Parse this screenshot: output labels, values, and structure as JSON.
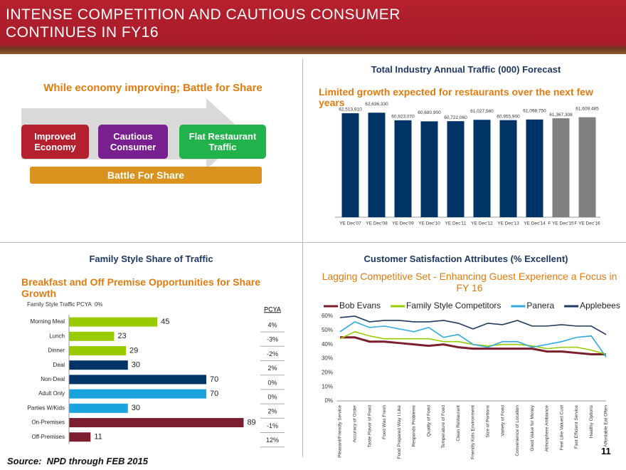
{
  "header": {
    "title": "INTENSE COMPETITION AND CAUTIOUS CONSUMER CONTINUES IN FY16"
  },
  "strategy": {
    "headline": "While economy improving; Battle for Share",
    "boxes": [
      "Improved Economy",
      "Cautious Consumer",
      "Flat Restaurant Traffic"
    ],
    "banner": "Battle For Share"
  },
  "chart_data": [
    {
      "type": "bar",
      "title": "Total Industry Annual Traffic (000) Forecast",
      "subtitle": "Limited growth expected for restaurants over the next few years",
      "categories": [
        "YE Dec'07",
        "YE Dec'08",
        "YE Dec'09",
        "YE Dec'10",
        "YE Dec'11",
        "YE Dec'12",
        "YE Dec'13",
        "YE Dec'14",
        "F YE Dec'15",
        "F YE Dec'16"
      ],
      "values": [
        62513910,
        62636330,
        60923070,
        60680900,
        60722060,
        61027560,
        60955900,
        61098750,
        61367308,
        61609485
      ],
      "value_labels": [
        "62,513,910",
        "62,636,330",
        "60,923,070",
        "60,680,900",
        "60,722,060",
        "61,027,560",
        "60,955,900",
        "61,098,750",
        "61,367,308",
        "61,609,485"
      ],
      "colors": [
        "#003466",
        "#003466",
        "#003466",
        "#003466",
        "#003466",
        "#003466",
        "#003466",
        "#003466",
        "#808080",
        "#808080"
      ],
      "ylim": [
        39000000,
        63000000
      ]
    },
    {
      "type": "hbar",
      "title": "Family Style Share of Traffic",
      "subtitle": "Breakfast and Off Premise Opportunities for Share Growth",
      "note": "Family Style Traffic PCYA  0%",
      "categories": [
        "Morning Meal",
        "Lunch",
        "Dinner",
        "Deal",
        "Non-Deal",
        "Adult Only",
        "Parties W/Kids",
        "On-Premises",
        "Off-Premises"
      ],
      "values": [
        45,
        23,
        29,
        30,
        70,
        70,
        30,
        89,
        11
      ],
      "colors": [
        "#99cc00",
        "#99cc00",
        "#99cc00",
        "#003466",
        "#003466",
        "#1aa3dc",
        "#1aa3dc",
        "#7b1f2e",
        "#7b1f2e"
      ],
      "xlim": [
        0,
        95
      ],
      "pcya": {
        "header": "PCYA",
        "values": [
          4,
          -3,
          -2,
          2,
          0,
          0,
          2,
          -1,
          12
        ],
        "value_labels": [
          "4%",
          "-3%",
          "-2%",
          "2%",
          "0%",
          "0%",
          "2%",
          "-1%",
          "12%"
        ]
      }
    },
    {
      "type": "line",
      "title": "Customer Satisfaction Attributes (% Excellent)",
      "subtitle": "Lagging Competitive Set - Enhancing Guest Experience a Focus in FY 16",
      "categories": [
        "Pleasant/Friendly Service",
        "Accuracy of Order",
        "Taste Flavor of Food",
        "Food Was Fresh",
        "Food Prepared Way I Like",
        "Responds Problems",
        "Quality of Food",
        "Temperature of Food",
        "Clean Restaurant",
        "Friendly Kids Environment",
        "Size of Portions",
        "Variety of Food",
        "Convenience of Location",
        "Good Value for Money",
        "Atmosphere Ambiance",
        "Feel Like Valued Cust",
        "Fast Efficient Service",
        "Healthy Options",
        "Affordable Eat Often"
      ],
      "series": [
        {
          "name": "Bob Evans",
          "color": "#7b1f2e",
          "values": [
            45,
            45,
            42,
            42,
            41,
            40,
            39,
            40,
            38,
            37,
            37,
            37,
            37,
            37,
            35,
            35,
            34,
            33,
            33
          ]
        },
        {
          "name": "Family Style Competitors",
          "color": "#99cc00",
          "values": [
            44,
            49,
            46,
            44,
            44,
            44,
            44,
            42,
            42,
            40,
            39,
            40,
            40,
            39,
            37,
            38,
            38,
            36,
            33
          ]
        },
        {
          "name": "Panera",
          "color": "#33aadd",
          "values": [
            49,
            56,
            52,
            53,
            51,
            49,
            52,
            45,
            47,
            40,
            38,
            42,
            42,
            38,
            40,
            42,
            45,
            46,
            31
          ]
        },
        {
          "name": "Applebees",
          "color": "#1f3a5f",
          "values": [
            59,
            60,
            56,
            57,
            57,
            56,
            56,
            57,
            55,
            51,
            55,
            54,
            57,
            53,
            53,
            54,
            53,
            53,
            47
          ]
        }
      ],
      "ylim": [
        0,
        60
      ],
      "yticks": [
        {
          "value": 0,
          "label": "0%"
        },
        {
          "value": 10,
          "label": "10%"
        },
        {
          "value": 20,
          "label": "20%"
        },
        {
          "value": 30,
          "label": "30%"
        },
        {
          "value": 40,
          "label": "40%"
        },
        {
          "value": 50,
          "label": "50%"
        },
        {
          "value": 60,
          "label": "60%"
        }
      ]
    }
  ],
  "footer": {
    "source": "Source:  NPD through FEB 2015",
    "page_number": "11"
  }
}
